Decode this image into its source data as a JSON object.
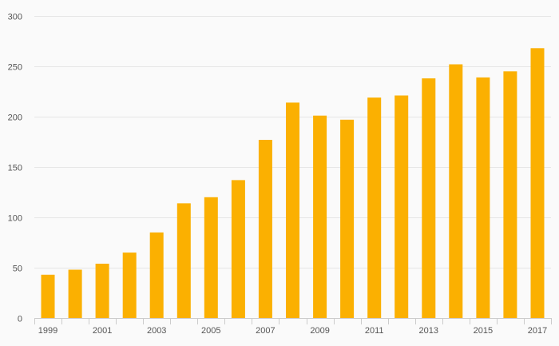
{
  "chart_data": {
    "type": "bar",
    "categories": [
      "1999",
      "2000",
      "2001",
      "2002",
      "2003",
      "2004",
      "2005",
      "2006",
      "2007",
      "2008",
      "2009",
      "2010",
      "2011",
      "2012",
      "2013",
      "2014",
      "2015",
      "2016",
      "2017"
    ],
    "x_tick_labels": [
      "1999",
      "2001",
      "2003",
      "2005",
      "2007",
      "2009",
      "2011",
      "2013",
      "2015",
      "2017"
    ],
    "values": [
      43,
      48,
      54,
      65,
      85,
      114,
      120,
      137,
      177,
      214,
      201,
      197,
      219,
      221,
      238,
      252,
      239,
      245,
      268
    ],
    "y_ticks": [
      0,
      50,
      100,
      150,
      200,
      250,
      300
    ],
    "ylim": [
      0,
      300
    ],
    "title": "",
    "xlabel": "",
    "ylabel": "",
    "grid": true,
    "bar_color": "#fbb001"
  }
}
